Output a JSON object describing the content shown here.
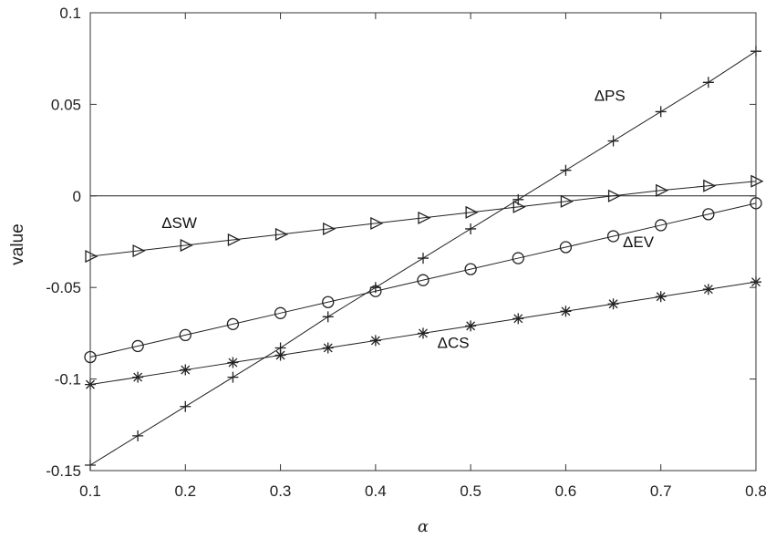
{
  "chart_data": {
    "type": "line",
    "xlabel": "α",
    "ylabel": "value",
    "xlim": [
      0.1,
      0.8
    ],
    "ylim": [
      -0.15,
      0.1
    ],
    "xticks": [
      "0.1",
      "0.2",
      "0.3",
      "0.4",
      "0.5",
      "0.6",
      "0.7",
      "0.8"
    ],
    "yticks": [
      "0.1",
      "0.05",
      "0",
      "-0.05",
      "-0.1",
      "-0.15"
    ],
    "grid": false,
    "reference_line_y": 0,
    "x": [
      0.1,
      0.15,
      0.2,
      0.25,
      0.3,
      0.35,
      0.4,
      0.45,
      0.5,
      0.55,
      0.6,
      0.65,
      0.7,
      0.75,
      0.8
    ],
    "series": [
      {
        "name": "ΔPS",
        "marker": "plus",
        "values": [
          -0.147,
          -0.131,
          -0.115,
          -0.099,
          -0.083,
          -0.066,
          -0.05,
          -0.034,
          -0.018,
          -0.002,
          0.014,
          0.03,
          0.046,
          0.062,
          0.079
        ]
      },
      {
        "name": "ΔSW",
        "marker": "triangle-right",
        "values": [
          -0.033,
          -0.03,
          -0.027,
          -0.024,
          -0.021,
          -0.018,
          -0.015,
          -0.012,
          -0.009,
          -0.006,
          -0.003,
          0.0,
          0.003,
          0.0055,
          0.008
        ]
      },
      {
        "name": "ΔEV",
        "marker": "circle",
        "values": [
          -0.088,
          -0.082,
          -0.076,
          -0.07,
          -0.064,
          -0.058,
          -0.052,
          -0.046,
          -0.04,
          -0.034,
          -0.028,
          -0.022,
          -0.016,
          -0.01,
          -0.004
        ]
      },
      {
        "name": "ΔCS",
        "marker": "asterisk",
        "values": [
          -0.103,
          -0.099,
          -0.095,
          -0.091,
          -0.087,
          -0.083,
          -0.079,
          -0.075,
          -0.071,
          -0.067,
          -0.063,
          -0.059,
          -0.055,
          -0.051,
          -0.047
        ]
      }
    ]
  }
}
